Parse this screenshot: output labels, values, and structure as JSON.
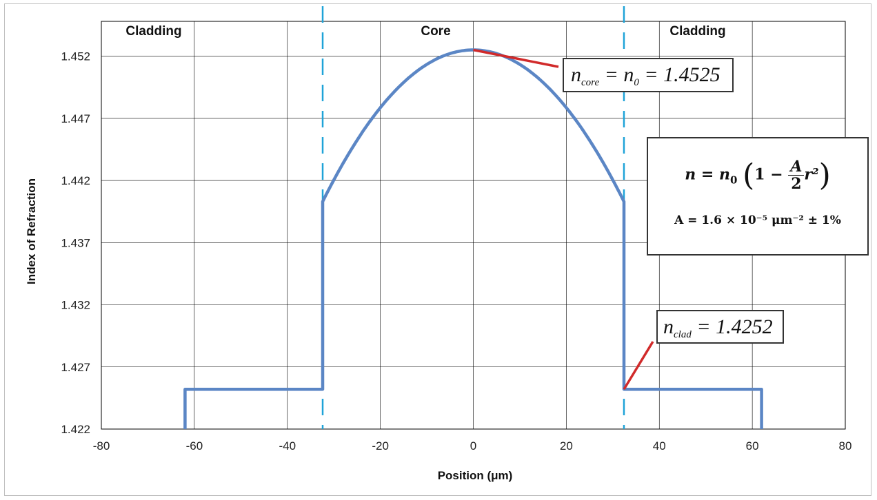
{
  "chart_data": {
    "type": "line",
    "xlabel": "Position (μm)",
    "ylabel": "Index of Refraction",
    "xlim": [
      -80,
      80
    ],
    "ylim": [
      1.422,
      1.455
    ],
    "x_ticks": [
      "-80",
      "-60",
      "-40",
      "-20",
      "0",
      "20",
      "40",
      "60",
      "80"
    ],
    "y_ticks": [
      "1.422",
      "1.427",
      "1.432",
      "1.437",
      "1.442",
      "1.447",
      "1.452"
    ],
    "grid": true,
    "regions": [
      "Cladding",
      "Core",
      "Cladding"
    ],
    "core_boundary_x": [
      -32.4,
      32.4
    ],
    "series": [
      {
        "color": "#5b86c5",
        "profile": {
          "n0": 1.4525,
          "A": 1.6e-05,
          "n_clad": 1.4252,
          "clad_extent_um": 62
        }
      }
    ],
    "annotations": {
      "core_label": "n_core = n_0 = 1.4525",
      "clad_label": "n_clad = 1.4252",
      "formula": "n = n₀(1 − A/2 r²)",
      "A_value": "A = 1.6 × 10⁻⁵ μm⁻² ± 1%"
    }
  },
  "labels": {
    "region_left": "Cladding",
    "region_core": "Core",
    "region_right": "Cladding",
    "xlabel": "Position (μm)",
    "ylabel": "Index of Refraction",
    "core_n": "n",
    "core_sub": "core",
    "core_mid": " = n",
    "core_sub2": "0",
    "core_val": " = 1.4525",
    "clad_n": "n",
    "clad_sub": "clad",
    "clad_val": " = 1.4252",
    "formula_lhs": "n = n",
    "formula_sub": "0",
    "formula_open": "(",
    "formula_one": "1 −",
    "formula_num": "A",
    "formula_den": "2",
    "formula_r": "r²",
    "formula_close": ")",
    "formula_a": "A = 1.6 × 10⁻⁵  μm⁻² ± 1%"
  },
  "colors": {
    "curve": "#5b86c5",
    "boundary": "#1fa3d8",
    "leader": "#d12a2a",
    "grid": "#000000"
  }
}
